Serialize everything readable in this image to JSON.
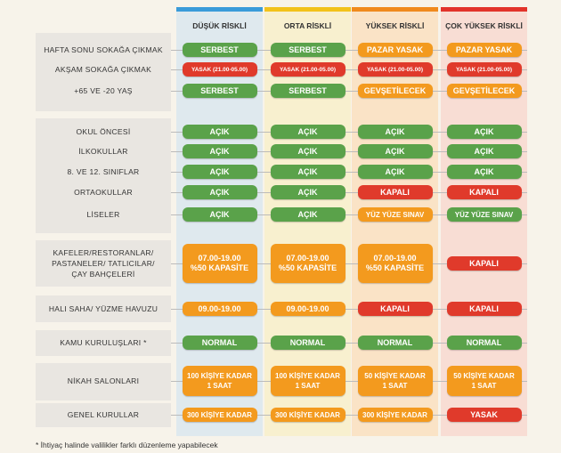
{
  "columns": [
    {
      "title": "DÜŞÜK RİSKLİ",
      "color": "#3a9bd9",
      "tint": "#dfe9ee"
    },
    {
      "title": "ORTA RİSKLİ",
      "color": "#f2c21b",
      "tint": "#f8f0cf"
    },
    {
      "title": "YÜKSEK RİSKLİ",
      "color": "#f08a1d",
      "tint": "#fae3c6"
    },
    {
      "title": "ÇOK YÜKSEK RİSKLİ",
      "color": "#e2332a",
      "tint": "#f8ddd4"
    }
  ],
  "colors": {
    "green": "#5aa24a",
    "red": "#e03a2b",
    "orange": "#f39a1e"
  },
  "groups": [
    {
      "rows": [
        {
          "label": [
            "HAFTA SONU SOKAĞA ÇIKMAK"
          ],
          "cells": [
            {
              "lines": [
                "SERBEST"
              ],
              "color": "green"
            },
            {
              "lines": [
                "SERBEST"
              ],
              "color": "green"
            },
            {
              "lines": [
                "PAZAR YASAK"
              ],
              "color": "orange"
            },
            {
              "lines": [
                "PAZAR YASAK"
              ],
              "color": "orange"
            }
          ]
        },
        {
          "label": [
            "AKŞAM SOKAĞA ÇIKMAK"
          ],
          "cells": [
            {
              "lines": [
                "YASAK (21.00-05.00)"
              ],
              "color": "red"
            },
            {
              "lines": [
                "YASAK (21.00-05.00)"
              ],
              "color": "red"
            },
            {
              "lines": [
                "YASAK (21.00-05.00)"
              ],
              "color": "red"
            },
            {
              "lines": [
                "YASAK (21.00-05.00)"
              ],
              "color": "red"
            }
          ]
        },
        {
          "label": [
            "+65 VE -20 YAŞ"
          ],
          "cells": [
            {
              "lines": [
                "SERBEST"
              ],
              "color": "green"
            },
            {
              "lines": [
                "SERBEST"
              ],
              "color": "green"
            },
            {
              "lines": [
                "GEVŞETİLECEK"
              ],
              "color": "orange"
            },
            {
              "lines": [
                "GEVŞETİLECEK"
              ],
              "color": "orange"
            }
          ]
        }
      ]
    },
    {
      "rows": [
        {
          "label": [
            "OKUL ÖNCESİ"
          ],
          "cells": [
            {
              "lines": [
                "AÇIK"
              ],
              "color": "green"
            },
            {
              "lines": [
                "AÇIK"
              ],
              "color": "green"
            },
            {
              "lines": [
                "AÇIK"
              ],
              "color": "green"
            },
            {
              "lines": [
                "AÇIK"
              ],
              "color": "green"
            }
          ]
        },
        {
          "label": [
            "İLKOKULLAR"
          ],
          "cells": [
            {
              "lines": [
                "AÇIK"
              ],
              "color": "green"
            },
            {
              "lines": [
                "AÇIK"
              ],
              "color": "green"
            },
            {
              "lines": [
                "AÇIK"
              ],
              "color": "green"
            },
            {
              "lines": [
                "AÇIK"
              ],
              "color": "green"
            }
          ]
        },
        {
          "label": [
            "8. VE 12. SINIFLAR"
          ],
          "cells": [
            {
              "lines": [
                "AÇIK"
              ],
              "color": "green"
            },
            {
              "lines": [
                "AÇIK"
              ],
              "color": "green"
            },
            {
              "lines": [
                "AÇIK"
              ],
              "color": "green"
            },
            {
              "lines": [
                "AÇIK"
              ],
              "color": "green"
            }
          ]
        },
        {
          "label": [
            "ORTAOKULLAR"
          ],
          "cells": [
            {
              "lines": [
                "AÇIK"
              ],
              "color": "green"
            },
            {
              "lines": [
                "AÇIK"
              ],
              "color": "green"
            },
            {
              "lines": [
                "KAPALI"
              ],
              "color": "red"
            },
            {
              "lines": [
                "KAPALI"
              ],
              "color": "red"
            }
          ]
        },
        {
          "label": [
            "LİSELER"
          ],
          "cells": [
            {
              "lines": [
                "AÇIK"
              ],
              "color": "green"
            },
            {
              "lines": [
                "AÇIK"
              ],
              "color": "green"
            },
            {
              "lines": [
                "YÜZ YÜZE SINAV"
              ],
              "color": "orange"
            },
            {
              "lines": [
                "YÜZ YÜZE SINAV"
              ],
              "color": "green"
            }
          ]
        }
      ]
    },
    {
      "rows": [
        {
          "label": [
            "KAFELER/RESTORANLAR/",
            "PASTANELER/ TATLICILAR/",
            "ÇAY BAHÇELERİ"
          ],
          "cells": [
            {
              "lines": [
                "07.00-19.00",
                "%50 KAPASİTE"
              ],
              "color": "orange"
            },
            {
              "lines": [
                "07.00-19.00",
                "%50 KAPASİTE"
              ],
              "color": "orange"
            },
            {
              "lines": [
                "07.00-19.00",
                "%50 KAPASİTE"
              ],
              "color": "orange"
            },
            {
              "lines": [
                "KAPALI"
              ],
              "color": "red"
            }
          ]
        }
      ]
    },
    {
      "rows": [
        {
          "label": [
            "HALI SAHA/ YÜZME HAVUZU"
          ],
          "cells": [
            {
              "lines": [
                "09.00-19.00"
              ],
              "color": "orange"
            },
            {
              "lines": [
                "09.00-19.00"
              ],
              "color": "orange"
            },
            {
              "lines": [
                "KAPALI"
              ],
              "color": "red"
            },
            {
              "lines": [
                "KAPALI"
              ],
              "color": "red"
            }
          ]
        }
      ]
    },
    {
      "rows": [
        {
          "label": [
            "KAMU KURULUŞLARI *"
          ],
          "cells": [
            {
              "lines": [
                "NORMAL"
              ],
              "color": "green"
            },
            {
              "lines": [
                "NORMAL"
              ],
              "color": "green"
            },
            {
              "lines": [
                "NORMAL"
              ],
              "color": "green"
            },
            {
              "lines": [
                "NORMAL"
              ],
              "color": "green"
            }
          ]
        }
      ]
    },
    {
      "rows": [
        {
          "label": [
            "NİKAH SALONLARI"
          ],
          "cells": [
            {
              "lines": [
                "100 KİŞİYE KADAR",
                "1 SAAT"
              ],
              "color": "orange"
            },
            {
              "lines": [
                "100 KİŞİYE KADAR",
                "1 SAAT"
              ],
              "color": "orange"
            },
            {
              "lines": [
                "50 KİŞİYE KADAR",
                "1 SAAT"
              ],
              "color": "orange"
            },
            {
              "lines": [
                "50 KİŞİYE KADAR",
                "1 SAAT"
              ],
              "color": "orange"
            }
          ]
        }
      ]
    },
    {
      "rows": [
        {
          "label": [
            "GENEL KURULLAR"
          ],
          "cells": [
            {
              "lines": [
                "300 KİŞİYE KADAR"
              ],
              "color": "orange"
            },
            {
              "lines": [
                "300 KİŞİYE KADAR"
              ],
              "color": "orange"
            },
            {
              "lines": [
                "300 KİŞİYE KADAR"
              ],
              "color": "orange"
            },
            {
              "lines": [
                "YASAK"
              ],
              "color": "red"
            }
          ]
        }
      ]
    }
  ],
  "footnote": "* İhtiyaç halinde valilikler farklı düzenleme yapabilecek"
}
